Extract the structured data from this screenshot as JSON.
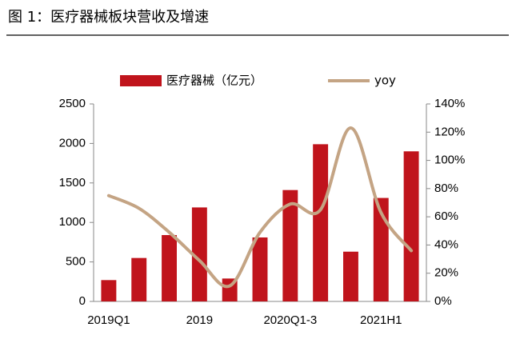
{
  "chart_data": {
    "type": "bar_line",
    "title": "图 1：医疗器械板块营收及增速",
    "categories": [
      "2019Q1",
      null,
      null,
      "2019",
      null,
      null,
      "2020Q1-3",
      null,
      null,
      "2021H1",
      null
    ],
    "series": [
      {
        "name": "医疗器械（亿元）",
        "type": "bar",
        "color": "#c0141c",
        "values": [
          270,
          550,
          840,
          1190,
          290,
          810,
          1410,
          1990,
          630,
          1310,
          1900
        ]
      },
      {
        "name": "yoy",
        "type": "line",
        "axis": "y2",
        "color": "#c4a484",
        "values": [
          75,
          66,
          49,
          29,
          11,
          49,
          69,
          65,
          123,
          63,
          36
        ]
      }
    ],
    "ylim": [
      0,
      2500
    ],
    "yticks": [
      0,
      500,
      1000,
      1500,
      2000,
      2500
    ],
    "y2lim": [
      0,
      140
    ],
    "y2ticks": [
      {
        "value": 0,
        "label": "0%"
      },
      {
        "value": 20,
        "label": "20%"
      },
      {
        "value": 40,
        "label": "40%"
      },
      {
        "value": 60,
        "label": "60%"
      },
      {
        "value": 80,
        "label": "80%"
      },
      {
        "value": 100,
        "label": "100%"
      },
      {
        "value": 120,
        "label": "120%"
      },
      {
        "value": 140,
        "label": "140%"
      }
    ],
    "legend": "top"
  }
}
